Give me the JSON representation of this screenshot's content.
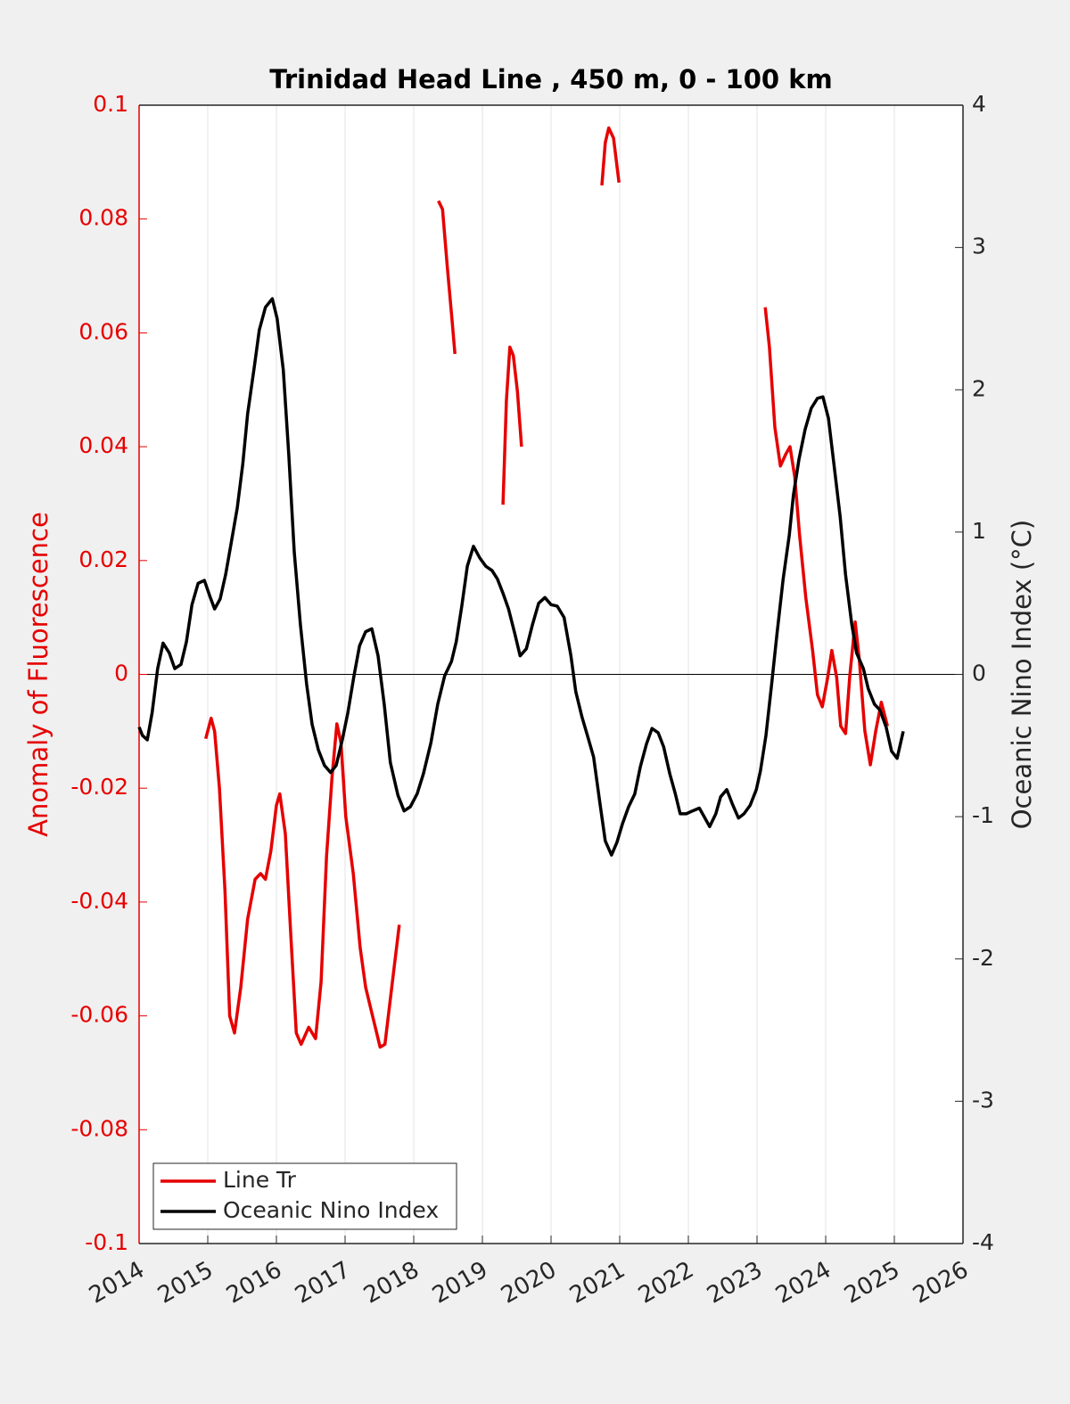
{
  "chart_data": {
    "type": "line",
    "title": "Trinidad Head Line , 450 m, 0 - 100 km",
    "ylabel": "Anomaly of Fluorescence",
    "y2label": "Oceanic Nino Index (°C)",
    "xlim": [
      2014,
      2026
    ],
    "xticks": [
      2014,
      2015,
      2016,
      2017,
      2018,
      2019,
      2020,
      2021,
      2022,
      2023,
      2024,
      2025,
      2026
    ],
    "ylim": [
      -0.1,
      0.1
    ],
    "yticks": [
      -0.1,
      -0.08,
      -0.06,
      -0.04,
      -0.02,
      0,
      0.02,
      0.04,
      0.06,
      0.08,
      0.1
    ],
    "y2lim": [
      -4,
      4
    ],
    "y2ticks": [
      -4,
      -3,
      -2,
      -1,
      0,
      1,
      2,
      3,
      4
    ],
    "grid": "x",
    "legend": "lower left",
    "series": [
      {
        "name": "Line Tr",
        "color": "#e60000",
        "x": [
          2014.97,
          2015.05,
          2015.1,
          2015.17,
          2015.25,
          2015.32,
          2015.39,
          2015.48,
          2015.58,
          2015.69,
          2015.77,
          2015.84,
          2015.92,
          2016.0,
          2016.05,
          2016.13,
          2016.21,
          2016.29,
          2016.36,
          2016.47,
          2016.57,
          2016.65,
          2016.73,
          2016.81,
          2016.88,
          2016.94,
          2017.01,
          2017.12,
          2017.22,
          2017.3,
          2017.4,
          2017.51,
          2017.58,
          2017.69,
          2017.79,
          2018.0,
          2018.36,
          2018.42,
          2018.49,
          2018.56,
          2018.6,
          2019.0,
          2019.3,
          2019.35,
          2019.4,
          2019.45,
          2019.51,
          2019.57,
          2020.2,
          2020.74,
          2020.79,
          2020.84,
          2020.91,
          2020.99,
          2022.0,
          2023.12,
          2023.18,
          2023.26,
          2023.34,
          2023.42,
          2023.48,
          2023.55,
          2023.62,
          2023.71,
          2023.81,
          2023.88,
          2023.95,
          2024.03,
          2024.09,
          2024.16,
          2024.22,
          2024.29,
          2024.35,
          2024.43,
          2024.49,
          2024.57,
          2024.65,
          2024.73,
          2024.81,
          2024.9
        ],
        "values": [
          -0.0113,
          -0.0077,
          -0.01,
          -0.02,
          -0.038,
          -0.06,
          -0.063,
          -0.055,
          -0.043,
          -0.036,
          -0.035,
          -0.036,
          -0.031,
          -0.023,
          -0.021,
          -0.028,
          -0.046,
          -0.063,
          -0.065,
          -0.062,
          -0.064,
          -0.054,
          -0.032,
          -0.018,
          -0.0087,
          -0.012,
          -0.025,
          -0.035,
          -0.048,
          -0.055,
          -0.06,
          -0.0655,
          -0.065,
          -0.054,
          -0.044,
          null,
          0.0832,
          0.0817,
          0.0715,
          0.062,
          0.0563,
          null,
          0.0298,
          0.048,
          0.0575,
          0.056,
          0.0497,
          0.04,
          null,
          0.0859,
          0.0934,
          0.096,
          0.0942,
          0.0864,
          null,
          0.0645,
          0.0575,
          0.0434,
          0.0366,
          0.0387,
          0.04,
          0.0347,
          0.0245,
          0.0135,
          0.0041,
          -0.0036,
          -0.0057,
          -0.0005,
          0.0042,
          -0.0005,
          -0.0091,
          -0.0104,
          -0.0005,
          0.0092,
          0.0026,
          -0.0099,
          -0.0159,
          -0.0099,
          -0.0049,
          -0.0091
        ]
      },
      {
        "name": "Oceanic Nino Index",
        "color": "#000000",
        "axis": "y2",
        "x": [
          2014.0,
          2014.05,
          2014.12,
          2014.19,
          2014.27,
          2014.35,
          2014.44,
          2014.52,
          2014.61,
          2014.69,
          2014.77,
          2014.86,
          2014.95,
          2015.03,
          2015.1,
          2015.18,
          2015.26,
          2015.34,
          2015.43,
          2015.51,
          2015.58,
          2015.68,
          2015.75,
          2015.84,
          2015.94,
          2016.01,
          2016.1,
          2016.18,
          2016.26,
          2016.35,
          2016.44,
          2016.52,
          2016.61,
          2016.7,
          2016.79,
          2016.87,
          2016.96,
          2017.04,
          2017.13,
          2017.21,
          2017.3,
          2017.39,
          2017.48,
          2017.57,
          2017.66,
          2017.77,
          2017.86,
          2017.95,
          2018.05,
          2018.14,
          2018.25,
          2018.35,
          2018.45,
          2018.55,
          2018.62,
          2018.7,
          2018.78,
          2018.87,
          2018.96,
          2019.05,
          2019.14,
          2019.22,
          2019.3,
          2019.38,
          2019.47,
          2019.55,
          2019.64,
          2019.73,
          2019.82,
          2019.91,
          2020.0,
          2020.09,
          2020.19,
          2020.29,
          2020.36,
          2020.45,
          2020.53,
          2020.62,
          2020.71,
          2020.79,
          2020.88,
          2020.96,
          2021.04,
          2021.13,
          2021.22,
          2021.3,
          2021.39,
          2021.47,
          2021.56,
          2021.64,
          2021.73,
          2021.81,
          2021.88,
          2021.97,
          2022.06,
          2022.16,
          2022.23,
          2022.31,
          2022.4,
          2022.47,
          2022.56,
          2022.64,
          2022.73,
          2022.81,
          2022.9,
          2022.99,
          2023.05,
          2023.13,
          2023.21,
          2023.29,
          2023.38,
          2023.47,
          2023.53,
          2023.61,
          2023.7,
          2023.79,
          2023.88,
          2023.96,
          2024.04,
          2024.12,
          2024.21,
          2024.29,
          2024.38,
          2024.45,
          2024.55,
          2024.62,
          2024.71,
          2024.79,
          2024.88,
          2024.96,
          2025.04,
          2025.13
        ],
        "values": [
          -0.37,
          -0.43,
          -0.46,
          -0.27,
          0.04,
          0.22,
          0.15,
          0.04,
          0.07,
          0.23,
          0.49,
          0.64,
          0.66,
          0.55,
          0.46,
          0.53,
          0.7,
          0.92,
          1.17,
          1.48,
          1.83,
          2.17,
          2.42,
          2.58,
          2.64,
          2.5,
          2.14,
          1.54,
          0.86,
          0.35,
          -0.07,
          -0.35,
          -0.53,
          -0.64,
          -0.69,
          -0.64,
          -0.46,
          -0.27,
          -0.01,
          0.2,
          0.3,
          0.32,
          0.13,
          -0.21,
          -0.62,
          -0.85,
          -0.96,
          -0.93,
          -0.84,
          -0.7,
          -0.48,
          -0.21,
          -0.01,
          0.09,
          0.23,
          0.48,
          0.76,
          0.9,
          0.82,
          0.76,
          0.73,
          0.67,
          0.57,
          0.46,
          0.29,
          0.13,
          0.18,
          0.35,
          0.5,
          0.54,
          0.49,
          0.48,
          0.4,
          0.13,
          -0.12,
          -0.3,
          -0.43,
          -0.58,
          -0.9,
          -1.17,
          -1.27,
          -1.18,
          -1.05,
          -0.93,
          -0.84,
          -0.65,
          -0.49,
          -0.38,
          -0.41,
          -0.51,
          -0.7,
          -0.84,
          -0.98,
          -0.98,
          -0.96,
          -0.94,
          -1.0,
          -1.07,
          -0.98,
          -0.86,
          -0.81,
          -0.91,
          -1.01,
          -0.98,
          -0.92,
          -0.81,
          -0.68,
          -0.43,
          -0.08,
          0.28,
          0.67,
          0.98,
          1.26,
          1.51,
          1.72,
          1.87,
          1.94,
          1.95,
          1.8,
          1.48,
          1.11,
          0.7,
          0.35,
          0.15,
          0.04,
          -0.1,
          -0.21,
          -0.25,
          -0.37,
          -0.54,
          -0.59,
          -0.4
        ]
      }
    ]
  }
}
